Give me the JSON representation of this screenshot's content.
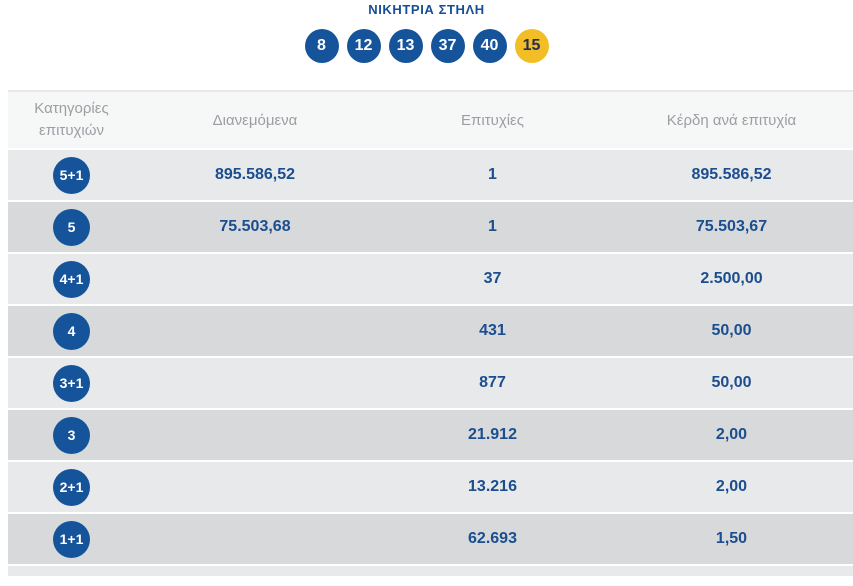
{
  "page": {
    "title": "ΝΙΚΗΤΡΙΑ ΣΤΗΛΗ"
  },
  "winning_numbers": {
    "balls": [
      {
        "value": "8",
        "type": "main"
      },
      {
        "value": "12",
        "type": "main"
      },
      {
        "value": "13",
        "type": "main"
      },
      {
        "value": "37",
        "type": "main"
      },
      {
        "value": "40",
        "type": "main"
      },
      {
        "value": "15",
        "type": "bonus"
      }
    ]
  },
  "table": {
    "headers": {
      "category": "Κατηγορίες επιτυχιών",
      "distributed": "Διανεμόμενα",
      "winners": "Επιτυχίες",
      "prize_per_winner": "Κέρδη ανά επιτυχία"
    },
    "rows": [
      {
        "category": "5+1",
        "distributed": "895.586,52",
        "winners": "1",
        "prize": "895.586,52"
      },
      {
        "category": "5",
        "distributed": "75.503,68",
        "winners": "1",
        "prize": "75.503,67"
      },
      {
        "category": "4+1",
        "distributed": "",
        "winners": "37",
        "prize": "2.500,00"
      },
      {
        "category": "4",
        "distributed": "",
        "winners": "431",
        "prize": "50,00"
      },
      {
        "category": "3+1",
        "distributed": "",
        "winners": "877",
        "prize": "50,00"
      },
      {
        "category": "3",
        "distributed": "",
        "winners": "21.912",
        "prize": "2,00"
      },
      {
        "category": "2+1",
        "distributed": "",
        "winners": "13.216",
        "prize": "2,00"
      },
      {
        "category": "1+1",
        "distributed": "",
        "winners": "62.693",
        "prize": "1,50"
      }
    ]
  },
  "colors": {
    "accent_blue": "#15539b",
    "title_blue": "#164f95",
    "value_blue": "#1b4e8f",
    "bonus_yellow": "#f3bd26",
    "header_text_grey": "#9b9fa3",
    "row_light_grey": "#e8e9ea",
    "row_dark_grey": "#d8d9db"
  }
}
